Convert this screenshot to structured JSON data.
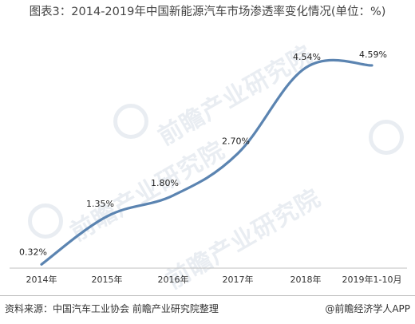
{
  "chart_data": {
    "type": "line",
    "title": "图表3：2014-2019年中国新能源汽车市场渗透率变化情况(单位：%)",
    "categories": [
      "2014年",
      "2015年",
      "2016年",
      "2017年",
      "2018年",
      "2019年1-10月"
    ],
    "series": [
      {
        "values": [
          0.32,
          1.35,
          1.8,
          2.7,
          4.54,
          4.59
        ]
      }
    ],
    "data_labels": [
      "0.32%",
      "1.35%",
      "1.80%",
      "2.70%",
      "4.54%",
      "4.59%"
    ],
    "ylim": [
      0,
      5
    ],
    "grid": false,
    "legend": "none",
    "colors": {
      "line": "#5b84b1"
    }
  },
  "footer": {
    "source": "资料来源：中国汽车工业协会 前瞻产业研究院整理",
    "brand": "@前瞻经济学人APP"
  },
  "watermark": {
    "text": "前瞻产业研究院"
  }
}
